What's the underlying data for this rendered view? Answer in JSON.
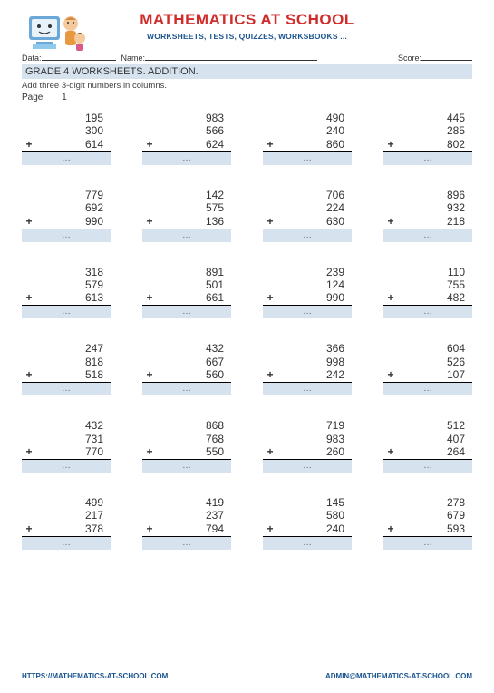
{
  "header": {
    "title": "MATHEMATICS AT SCHOOL",
    "subtitle": "WORKSHEETS, TESTS, QUIZZES, WORKSBOOKS ..."
  },
  "info": {
    "data_label": "Data:",
    "name_label": "Name:",
    "score_label": "Score:"
  },
  "grade_title": "GRADE 4 WORKSHEETS. ADDITION.",
  "instructions": "Add three 3-digit numbers in columns.",
  "page_label": "Page",
  "page_number": "1",
  "operator": "+",
  "ellipsis": "…",
  "problems": [
    [
      [
        "195",
        "300",
        "614"
      ],
      [
        "983",
        "566",
        "624"
      ],
      [
        "490",
        "240",
        "860"
      ],
      [
        "445",
        "285",
        "802"
      ]
    ],
    [
      [
        "779",
        "692",
        "990"
      ],
      [
        "142",
        "575",
        "136"
      ],
      [
        "706",
        "224",
        "630"
      ],
      [
        "896",
        "932",
        "218"
      ]
    ],
    [
      [
        "318",
        "579",
        "613"
      ],
      [
        "891",
        "501",
        "661"
      ],
      [
        "239",
        "124",
        "990"
      ],
      [
        "110",
        "755",
        "482"
      ]
    ],
    [
      [
        "247",
        "818",
        "518"
      ],
      [
        "432",
        "667",
        "560"
      ],
      [
        "366",
        "998",
        "242"
      ],
      [
        "604",
        "526",
        "107"
      ]
    ],
    [
      [
        "432",
        "731",
        "770"
      ],
      [
        "868",
        "768",
        "550"
      ],
      [
        "719",
        "983",
        "260"
      ],
      [
        "512",
        "407",
        "264"
      ]
    ],
    [
      [
        "499",
        "217",
        "378"
      ],
      [
        "419",
        "237",
        "794"
      ],
      [
        "145",
        "580",
        "240"
      ],
      [
        "278",
        "679",
        "593"
      ]
    ]
  ],
  "footer": {
    "url": "HTTPS://MATHEMATICS-AT-SCHOOL.COM",
    "email": "ADMIN@MATHEMATICS-AT-SCHOOL.COM"
  },
  "colors": {
    "title": "#d22b2b",
    "subtitle": "#1a5490",
    "band": "#d6e3ef",
    "footer": "#1a5490"
  }
}
